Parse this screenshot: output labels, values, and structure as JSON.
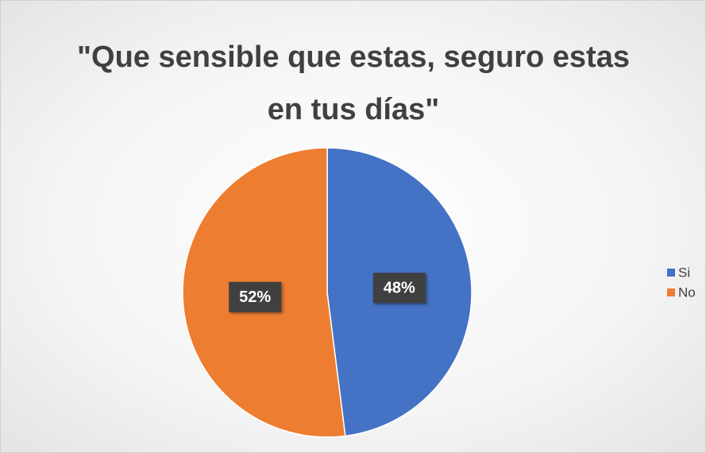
{
  "chart_data": {
    "type": "pie",
    "title": "\"Que sensible que estas, seguro estas en tus días\"",
    "categories": [
      "Si",
      "No"
    ],
    "values": [
      48,
      52
    ],
    "value_labels": [
      "48%",
      "52%"
    ],
    "colors": [
      "#4472c4",
      "#ed7d31"
    ],
    "legend": "right"
  }
}
